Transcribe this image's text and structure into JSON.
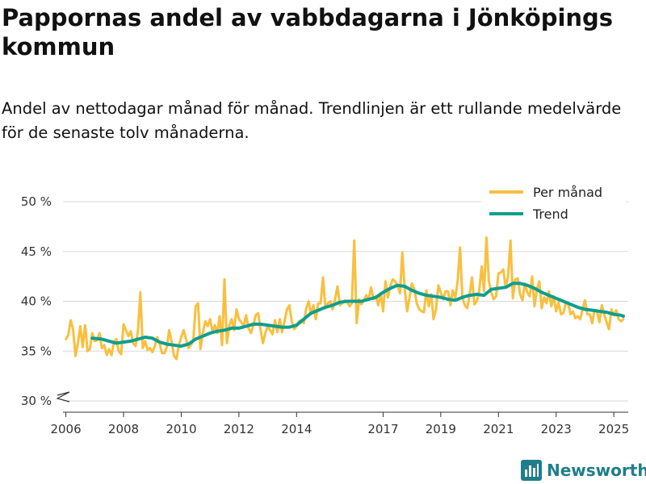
{
  "header": {
    "title": "Pappornas andel av vabbdagarna i Jönköpings kommun",
    "subtitle": "Andel av nettodagar månad för månad. Trendlinjen är ett rullande medelvärde för de senaste tolv månaderna."
  },
  "brand": {
    "name": "Newsworthy"
  },
  "colors": {
    "monthly": "#F9BF3E",
    "trend": "#0E9E8E",
    "grid": "#d9d9d9",
    "axis": "#333333",
    "brand": "#1f7e8a"
  },
  "chart_data": {
    "type": "line",
    "title": "Pappornas andel av vabbdagarna i Jönköpings kommun",
    "xlabel": "",
    "ylabel": "",
    "ylim": [
      30,
      50
    ],
    "xlim": [
      2005.9,
      2025.5
    ],
    "y_break": true,
    "yticks": [
      30,
      35,
      40,
      45,
      50
    ],
    "ytick_labels": [
      "30 %",
      "35 %",
      "40 %",
      "45 %",
      "50 %"
    ],
    "xticks": [
      2006,
      2008,
      2010,
      2012,
      2014,
      2017,
      2019,
      2021,
      2023,
      2025
    ],
    "xtick_labels": [
      "2006",
      "2008",
      "2010",
      "2012",
      "2014",
      "2017",
      "2019",
      "2021",
      "2023",
      "2025"
    ],
    "legend": {
      "position": "top-right",
      "entries": [
        "Per månad",
        "Trend"
      ]
    },
    "series": [
      {
        "name": "Per månad",
        "x": [
          2006.0,
          2006.083,
          2006.167,
          2006.25,
          2006.333,
          2006.417,
          2006.5,
          2006.583,
          2006.667,
          2006.75,
          2006.833,
          2006.917,
          2007.0,
          2007.083,
          2007.167,
          2007.25,
          2007.333,
          2007.417,
          2007.5,
          2007.583,
          2007.667,
          2007.75,
          2007.833,
          2007.917,
          2008.0,
          2008.083,
          2008.167,
          2008.25,
          2008.333,
          2008.417,
          2008.5,
          2008.583,
          2008.667,
          2008.75,
          2008.833,
          2008.917,
          2009.0,
          2009.083,
          2009.167,
          2009.25,
          2009.333,
          2009.417,
          2009.5,
          2009.583,
          2009.667,
          2009.75,
          2009.833,
          2009.917,
          2010.0,
          2010.083,
          2010.167,
          2010.25,
          2010.333,
          2010.417,
          2010.5,
          2010.583,
          2010.667,
          2010.75,
          2010.833,
          2010.917,
          2011.0,
          2011.083,
          2011.167,
          2011.25,
          2011.333,
          2011.417,
          2011.5,
          2011.583,
          2011.667,
          2011.75,
          2011.833,
          2011.917,
          2012.0,
          2012.083,
          2012.167,
          2012.25,
          2012.333,
          2012.417,
          2012.5,
          2012.583,
          2012.667,
          2012.75,
          2012.833,
          2012.917,
          2013.0,
          2013.083,
          2013.167,
          2013.25,
          2013.333,
          2013.417,
          2013.5,
          2013.583,
          2013.667,
          2013.75,
          2013.833,
          2013.917,
          2014.0,
          2014.083,
          2014.167,
          2014.25,
          2014.333,
          2014.417,
          2014.5,
          2014.583,
          2014.667,
          2014.75,
          2014.833,
          2014.917,
          2015.0,
          2015.083,
          2015.167,
          2015.25,
          2015.333,
          2015.417,
          2015.5,
          2015.583,
          2015.667,
          2015.75,
          2015.833,
          2015.917,
          2016.0,
          2016.083,
          2016.167,
          2016.25,
          2016.333,
          2016.417,
          2016.5,
          2016.583,
          2016.667,
          2016.75,
          2016.833,
          2016.917,
          2017.0,
          2017.083,
          2017.167,
          2017.25,
          2017.333,
          2017.417,
          2017.5,
          2017.583,
          2017.667,
          2017.75,
          2017.833,
          2017.917,
          2018.0,
          2018.083,
          2018.167,
          2018.25,
          2018.333,
          2018.417,
          2018.5,
          2018.583,
          2018.667,
          2018.75,
          2018.833,
          2018.917,
          2019.0,
          2019.083,
          2019.167,
          2019.25,
          2019.333,
          2019.417,
          2019.5,
          2019.583,
          2019.667,
          2019.75,
          2019.833,
          2019.917,
          2020.0,
          2020.083,
          2020.167,
          2020.25,
          2020.333,
          2020.417,
          2020.5,
          2020.583,
          2020.667,
          2020.75,
          2020.833,
          2020.917,
          2021.0,
          2021.083,
          2021.167,
          2021.25,
          2021.333,
          2021.417,
          2021.5,
          2021.583,
          2021.667,
          2021.75,
          2021.833,
          2021.917,
          2022.0,
          2022.083,
          2022.167,
          2022.25,
          2022.333,
          2022.417,
          2022.5,
          2022.583,
          2022.667,
          2022.75,
          2022.833,
          2022.917,
          2023.0,
          2023.083,
          2023.167,
          2023.25,
          2023.333,
          2023.417,
          2023.5,
          2023.583,
          2023.667,
          2023.75,
          2023.833,
          2023.917,
          2024.0,
          2024.083,
          2024.167,
          2024.25,
          2024.333,
          2024.417,
          2024.5,
          2024.583,
          2024.667,
          2024.75,
          2024.833,
          2024.917,
          2025.0,
          2025.083,
          2025.167,
          2025.25,
          2025.333
        ],
        "values": [
          36.2,
          36.6,
          38.1,
          37.2,
          34.5,
          35.8,
          37.5,
          35.4,
          37.6,
          35.0,
          35.2,
          36.8,
          36.0,
          36.1,
          36.8,
          35.3,
          35.6,
          34.6,
          35.2,
          34.6,
          35.9,
          36.2,
          35.0,
          34.7,
          37.7,
          37.1,
          36.5,
          37.0,
          35.8,
          35.5,
          37.1,
          40.9,
          35.3,
          36.0,
          35.1,
          35.3,
          34.9,
          35.5,
          36.4,
          35.8,
          34.8,
          34.8,
          35.4,
          37.1,
          36.0,
          34.5,
          34.2,
          35.6,
          36.4,
          37.1,
          36.2,
          35.3,
          35.6,
          36.0,
          39.5,
          39.8,
          35.2,
          36.8,
          38.0,
          37.5,
          38.2,
          37.0,
          37.6,
          36.8,
          38.5,
          35.6,
          42.2,
          35.8,
          37.6,
          38.2,
          37.1,
          39.2,
          38.2,
          37.9,
          37.5,
          38.6,
          37.3,
          36.8,
          37.6,
          38.6,
          38.8,
          37.2,
          35.8,
          36.8,
          37.5,
          37.1,
          36.7,
          38.1,
          36.9,
          38.2,
          36.9,
          38.0,
          39.2,
          39.6,
          38.0,
          37.2,
          37.5,
          38.0,
          38.1,
          37.8,
          39.3,
          40.0,
          38.7,
          39.6,
          38.2,
          39.8,
          39.8,
          42.4,
          39.3,
          39.8,
          40.0,
          39.2,
          40.2,
          41.5,
          39.6,
          39.8,
          40.1,
          40.0,
          39.5,
          39.8,
          46.1,
          37.8,
          40.2,
          39.7,
          40.1,
          40.6,
          40.2,
          41.4,
          40.2,
          40.5,
          39.6,
          40.8,
          39.0,
          42.0,
          40.4,
          41.5,
          42.2,
          42.0,
          41.6,
          40.8,
          44.9,
          41.2,
          39.0,
          40.4,
          41.8,
          41.2,
          39.8,
          39.2,
          39.0,
          38.9,
          41.1,
          39.5,
          40.7,
          38.2,
          39.2,
          41.6,
          40.9,
          40.2,
          41.0,
          41.0,
          39.6,
          41.1,
          40.3,
          42.0,
          45.4,
          40.4,
          39.6,
          39.3,
          40.7,
          42.4,
          39.7,
          40.0,
          41.1,
          43.5,
          41.0,
          46.4,
          42.0,
          40.9,
          40.2,
          40.5,
          42.8,
          42.9,
          43.2,
          41.4,
          42.5,
          46.1,
          40.3,
          42.2,
          42.3,
          40.7,
          40.1,
          41.8,
          40.9,
          40.5,
          42.5,
          39.5,
          41.2,
          42.0,
          39.3,
          40.4,
          39.8,
          41.0,
          39.5,
          40.5,
          39.0,
          39.9,
          38.7,
          38.8,
          39.8,
          39.8,
          38.7,
          39.0,
          38.3,
          38.5,
          38.2,
          39.2,
          40.1,
          38.7,
          38.7,
          37.8,
          39.1,
          39.0,
          37.9,
          39.6,
          38.7,
          37.9,
          37.2,
          39.2,
          38.6,
          39.1,
          38.2,
          38.0,
          38.2
        ]
      },
      {
        "name": "Trend",
        "x": [
          2006.917,
          2007.25,
          2007.5,
          2007.75,
          2008.0,
          2008.25,
          2008.5,
          2008.75,
          2009.0,
          2009.25,
          2009.5,
          2009.75,
          2010.0,
          2010.25,
          2010.5,
          2010.75,
          2011.0,
          2011.25,
          2011.5,
          2011.75,
          2012.0,
          2012.25,
          2012.5,
          2012.75,
          2013.0,
          2013.25,
          2013.5,
          2013.75,
          2014.0,
          2014.25,
          2014.5,
          2014.75,
          2015.0,
          2015.25,
          2015.5,
          2015.75,
          2016.0,
          2016.25,
          2016.5,
          2016.75,
          2017.0,
          2017.25,
          2017.5,
          2017.75,
          2018.0,
          2018.25,
          2018.5,
          2018.75,
          2019.0,
          2019.25,
          2019.5,
          2019.75,
          2020.0,
          2020.25,
          2020.5,
          2020.75,
          2021.0,
          2021.25,
          2021.5,
          2021.75,
          2022.0,
          2022.25,
          2022.5,
          2022.75,
          2023.0,
          2023.25,
          2023.5,
          2023.75,
          2024.0,
          2024.25,
          2024.5,
          2024.75,
          2025.0,
          2025.25,
          2025.333
        ],
        "values": [
          36.3,
          36.2,
          36.0,
          35.8,
          35.9,
          36.0,
          36.2,
          36.4,
          36.3,
          35.9,
          35.7,
          35.6,
          35.5,
          35.7,
          36.2,
          36.5,
          36.8,
          37.0,
          37.1,
          37.3,
          37.3,
          37.5,
          37.7,
          37.7,
          37.6,
          37.5,
          37.4,
          37.4,
          37.6,
          38.2,
          38.8,
          39.1,
          39.4,
          39.6,
          39.9,
          40.0,
          40.0,
          40.0,
          40.2,
          40.4,
          40.9,
          41.3,
          41.6,
          41.5,
          41.1,
          40.8,
          40.6,
          40.5,
          40.4,
          40.2,
          40.1,
          40.4,
          40.6,
          40.7,
          40.6,
          41.2,
          41.3,
          41.4,
          41.8,
          41.8,
          41.6,
          41.3,
          40.9,
          40.6,
          40.3,
          40.0,
          39.7,
          39.4,
          39.2,
          39.1,
          39.0,
          38.9,
          38.7,
          38.6,
          38.5
        ]
      }
    ]
  }
}
